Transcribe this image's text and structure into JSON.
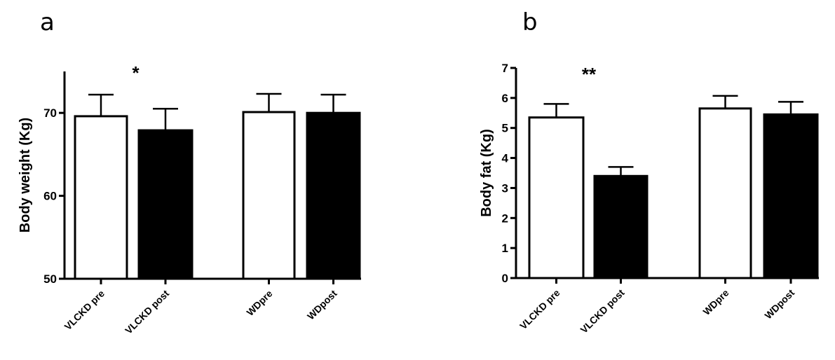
{
  "chart_data": [
    {
      "panel": "a",
      "type": "bar",
      "categories": [
        "VLCKD pre",
        "VLCKD post",
        "WDpre",
        "WDpost"
      ],
      "values": [
        69.6,
        67.9,
        70.1,
        70.0
      ],
      "errors": [
        2.6,
        2.6,
        2.2,
        2.2
      ],
      "fills": [
        "#ffffff",
        "#000000",
        "#ffffff",
        "#000000"
      ],
      "ylabel": "Body weight (Kg)",
      "ylim": [
        50,
        75
      ],
      "yticks": [
        50,
        60,
        70
      ],
      "significance": "*",
      "significance_over": 0
    },
    {
      "panel": "b",
      "type": "bar",
      "categories": [
        "VLCKD pre",
        "VLCKD post",
        "WDpre",
        "WDpost"
      ],
      "values": [
        5.35,
        3.4,
        5.65,
        5.45
      ],
      "errors": [
        0.45,
        0.3,
        0.42,
        0.42
      ],
      "fills": [
        "#ffffff",
        "#000000",
        "#ffffff",
        "#000000"
      ],
      "ylabel": "Body fat (Kg)",
      "ylim": [
        0,
        7
      ],
      "yticks": [
        0,
        1,
        2,
        3,
        4,
        5,
        6,
        7
      ],
      "significance": "**",
      "significance_over": 0
    }
  ]
}
